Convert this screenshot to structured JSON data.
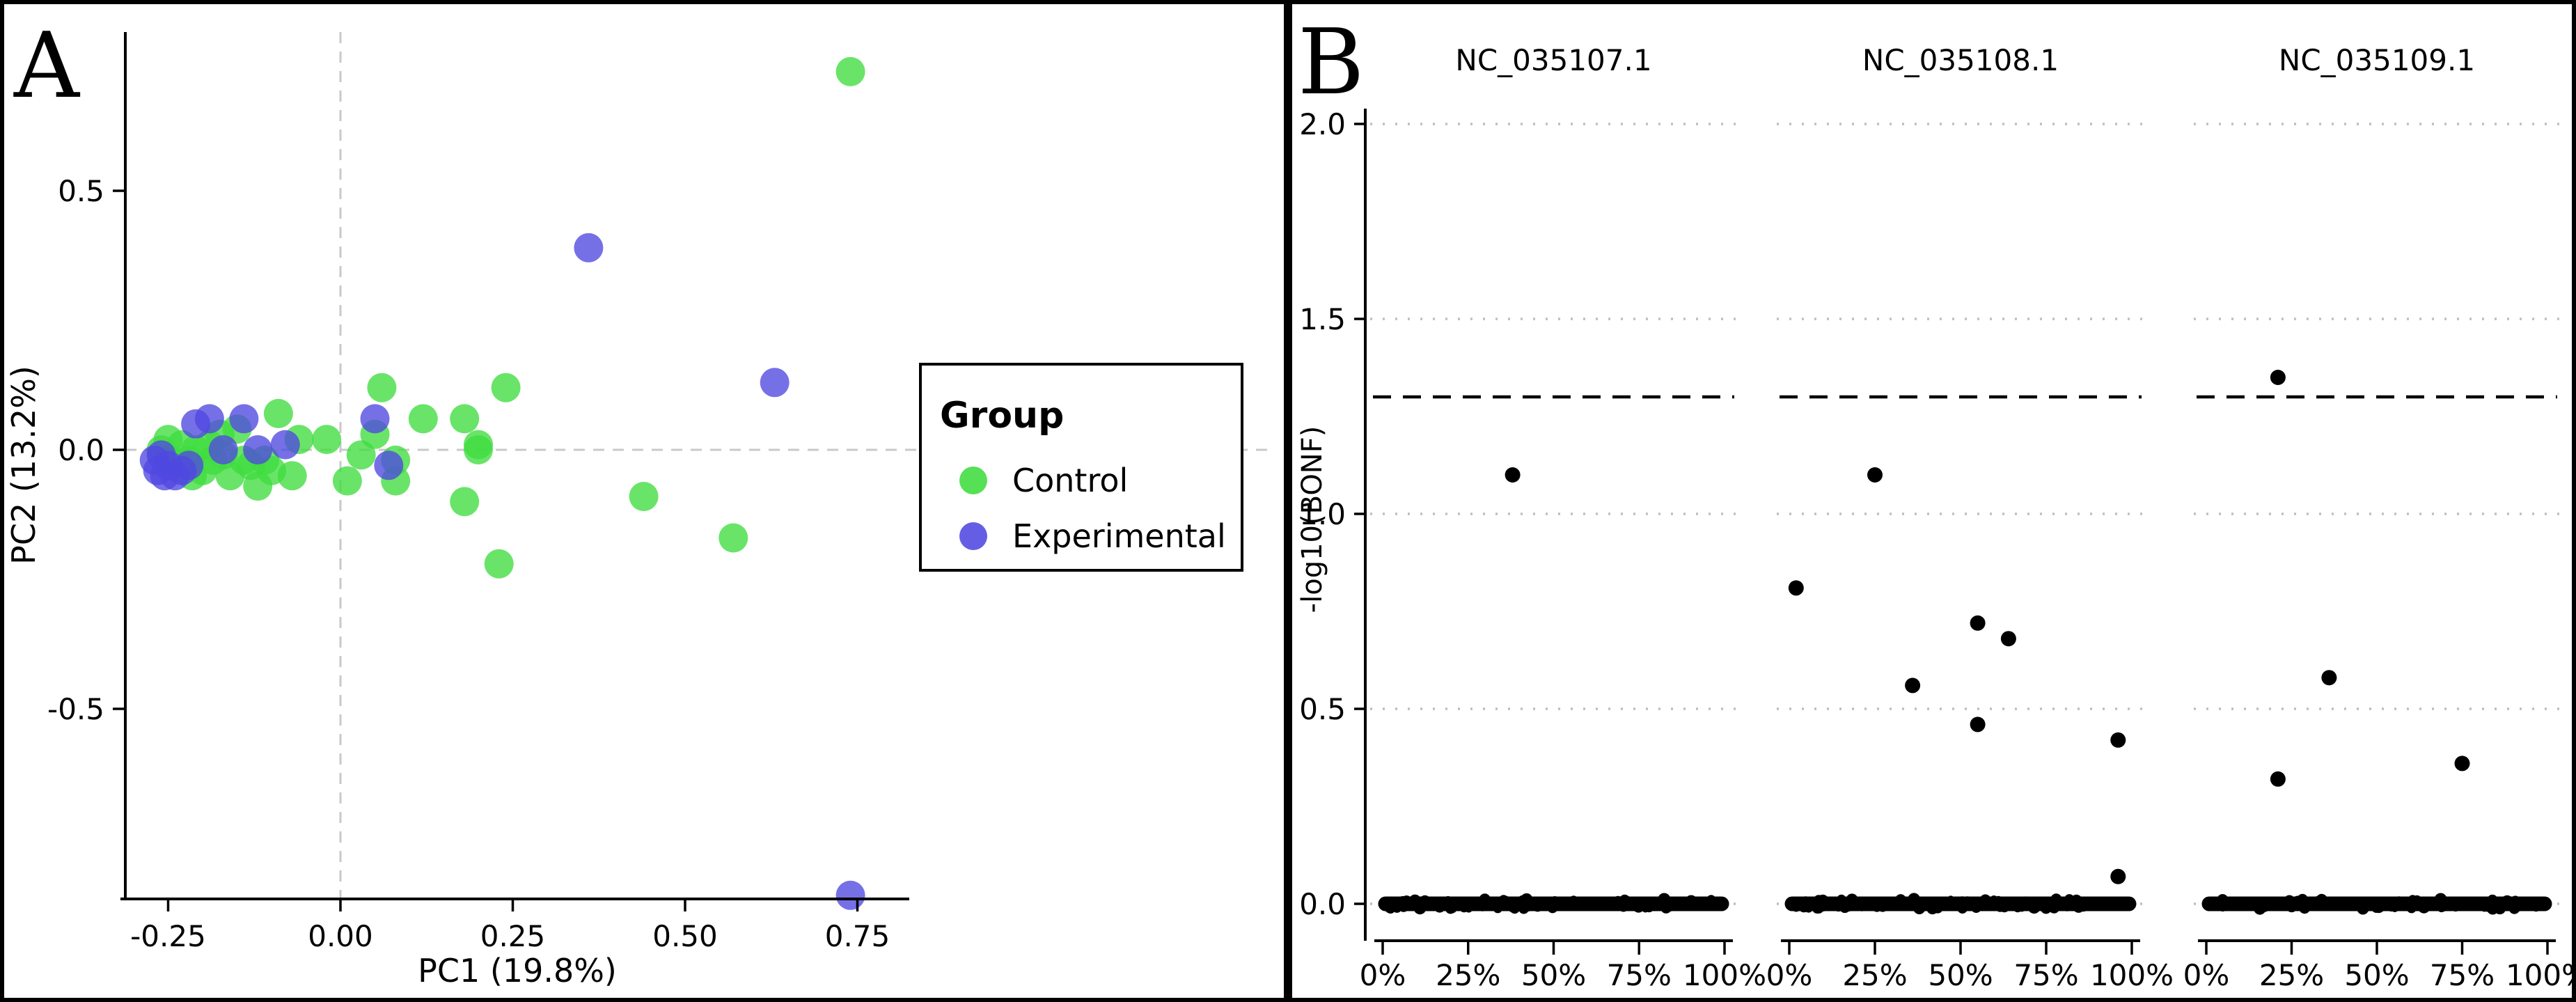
{
  "figure": {
    "panel_a_label": "A",
    "panel_b_label": "B"
  },
  "chart_data": [
    {
      "type": "scatter",
      "panel": "A",
      "xlabel": "PC1 (19.8%)",
      "ylabel": "PC2 (13.2%)",
      "xlim": [
        -0.32,
        0.8
      ],
      "ylim": [
        -0.87,
        0.81
      ],
      "x_ticks": [
        -0.25,
        0.0,
        0.25,
        0.5,
        0.75
      ],
      "x_tick_labels": [
        "-0.25",
        "0.00",
        "0.25",
        "0.50",
        "0.75"
      ],
      "y_ticks": [
        0.5,
        0.0,
        -0.5
      ],
      "y_tick_labels": [
        "0.5",
        "0.0",
        "-0.5"
      ],
      "reference_lines": {
        "vertical_x": 0,
        "horizontal_y": 0,
        "style": "dashed",
        "color": "#c9c9c9"
      },
      "legend": {
        "title": "Group",
        "position": "right",
        "entries": [
          {
            "label": "Control",
            "color": "#3fdc3f"
          },
          {
            "label": "Experimental",
            "color": "#4f48e0"
          }
        ]
      },
      "series": [
        {
          "name": "Control",
          "color": "#3fdc3f",
          "points": [
            [
              -0.26,
              0.0
            ],
            [
              -0.25,
              0.02
            ],
            [
              -0.245,
              -0.02
            ],
            [
              -0.23,
              0.01
            ],
            [
              -0.22,
              -0.02
            ],
            [
              -0.215,
              -0.05
            ],
            [
              -0.21,
              0.0
            ],
            [
              -0.2,
              -0.04
            ],
            [
              -0.19,
              0.01
            ],
            [
              -0.185,
              -0.02
            ],
            [
              -0.175,
              0.03
            ],
            [
              -0.17,
              -0.01
            ],
            [
              -0.16,
              -0.05
            ],
            [
              -0.15,
              0.04
            ],
            [
              -0.14,
              -0.02
            ],
            [
              -0.13,
              -0.03
            ],
            [
              -0.12,
              -0.07
            ],
            [
              -0.11,
              -0.02
            ],
            [
              -0.1,
              -0.04
            ],
            [
              -0.09,
              0.07
            ],
            [
              -0.07,
              -0.05
            ],
            [
              -0.06,
              0.02
            ],
            [
              -0.02,
              0.02
            ],
            [
              0.01,
              -0.06
            ],
            [
              0.03,
              -0.01
            ],
            [
              0.06,
              0.12
            ],
            [
              0.05,
              0.03
            ],
            [
              0.08,
              -0.02
            ],
            [
              0.08,
              -0.06
            ],
            [
              0.12,
              0.06
            ],
            [
              0.18,
              0.06
            ],
            [
              0.2,
              0.0
            ],
            [
              0.2,
              0.01
            ],
            [
              0.18,
              -0.1
            ],
            [
              0.23,
              -0.22
            ],
            [
              0.24,
              0.12
            ],
            [
              0.44,
              -0.09
            ],
            [
              0.57,
              -0.17
            ],
            [
              0.74,
              0.73
            ]
          ]
        },
        {
          "name": "Experimental",
          "color": "#4f48e0",
          "points": [
            [
              -0.27,
              -0.02
            ],
            [
              -0.265,
              -0.04
            ],
            [
              -0.26,
              -0.01
            ],
            [
              -0.255,
              -0.05
            ],
            [
              -0.25,
              -0.03
            ],
            [
              -0.24,
              -0.05
            ],
            [
              -0.23,
              -0.04
            ],
            [
              -0.22,
              -0.03
            ],
            [
              -0.21,
              0.05
            ],
            [
              -0.19,
              0.06
            ],
            [
              -0.17,
              0.0
            ],
            [
              -0.14,
              0.06
            ],
            [
              -0.12,
              0.0
            ],
            [
              -0.08,
              0.01
            ],
            [
              0.05,
              0.06
            ],
            [
              0.07,
              -0.03
            ],
            [
              0.36,
              0.39
            ],
            [
              0.63,
              0.13
            ],
            [
              0.74,
              -0.86
            ]
          ]
        }
      ]
    },
    {
      "type": "scatter",
      "panel": "B",
      "ylabel": "-log10(BONF)",
      "ylim": [
        0,
        2.05
      ],
      "y_ticks": [
        0.0,
        0.5,
        1.0,
        1.5,
        2.0
      ],
      "y_tick_labels": [
        "0.0",
        "0.5",
        "1.0",
        "1.5",
        "2.0"
      ],
      "x_ticks_pct": [
        0,
        25,
        50,
        75,
        100
      ],
      "x_tick_labels": [
        "0%",
        "25%",
        "50%",
        "75%",
        "100%"
      ],
      "threshold_line": {
        "y": 1.3,
        "style": "dashed",
        "color": "#000000"
      },
      "gridlines": {
        "values": [
          0.0,
          0.5,
          1.0,
          1.5,
          2.0
        ],
        "style": "dotted",
        "color": "#bdbdbd"
      },
      "point_color": "#000000",
      "facets": [
        {
          "label": "NC_035107.1",
          "points": [
            [
              38,
              1.1
            ]
          ],
          "baseline_band": {
            "y": 0,
            "x_start": 0,
            "x_end": 100
          }
        },
        {
          "label": "NC_035108.1",
          "points": [
            [
              2,
              0.81
            ],
            [
              25,
              1.1
            ],
            [
              36,
              0.56
            ],
            [
              55,
              0.72
            ],
            [
              64,
              0.68
            ],
            [
              55,
              0.46
            ],
            [
              96,
              0.42
            ],
            [
              96,
              0.07
            ]
          ],
          "baseline_band": {
            "y": 0,
            "x_start": 0,
            "x_end": 100
          }
        },
        {
          "label": "NC_035109.1",
          "points": [
            [
              21,
              1.35
            ],
            [
              36,
              0.58
            ],
            [
              21,
              0.32
            ],
            [
              75,
              0.36
            ]
          ],
          "baseline_band": {
            "y": 0,
            "x_start": 0,
            "x_end": 100
          }
        }
      ]
    }
  ]
}
